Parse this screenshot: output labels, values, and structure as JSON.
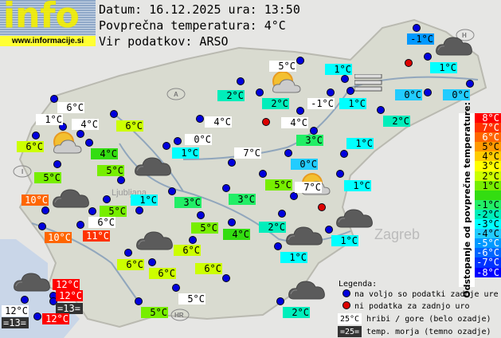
{
  "logo": {
    "word": "info",
    "url": "www.informacije.si"
  },
  "header": {
    "date_line": "Datum: 16.12.2025 ura: 13:50",
    "avg_line": "Povprečna temperatura: 4°C",
    "source_line": "Vir podatkov: ARSO"
  },
  "average_temperature": 4,
  "stations": [
    {
      "temp": "6°C",
      "style": "mountain"
    },
    {
      "temp": "1°C",
      "style": "mountain"
    },
    {
      "temp": "4°C",
      "style": "mountain"
    },
    {
      "temp": "6°C",
      "dev": 2
    },
    {
      "temp": "6°C",
      "dev": 2
    },
    {
      "temp": "4°C",
      "dev": 0
    },
    {
      "temp": "5°C",
      "dev": 1
    },
    {
      "temp": "5°C",
      "dev": 1
    },
    {
      "temp": "10°C",
      "dev": 6
    },
    {
      "temp": "1°C",
      "dev": -3
    },
    {
      "temp": "5°C",
      "dev": 1
    },
    {
      "temp": "6°C",
      "style": "mountain"
    },
    {
      "temp": "10°C",
      "dev": 6
    },
    {
      "temp": "11°C",
      "dev": 7
    },
    {
      "temp": "5°C",
      "style": "mountain"
    },
    {
      "temp": "2°C",
      "dev": -2
    },
    {
      "temp": "2°C",
      "dev": -2
    },
    {
      "temp": "-1°C",
      "style": "mountain"
    },
    {
      "temp": "4°C",
      "style": "mountain"
    },
    {
      "temp": "4°C",
      "style": "mountain"
    },
    {
      "temp": "0°C",
      "style": "mountain"
    },
    {
      "temp": "3°C",
      "dev": -1
    },
    {
      "temp": "1°C",
      "dev": -3
    },
    {
      "temp": "7°C",
      "style": "mountain"
    },
    {
      "temp": "0°C",
      "dev": -4
    },
    {
      "temp": "5°C",
      "dev": 1
    },
    {
      "temp": "7°C",
      "style": "mountain"
    },
    {
      "temp": "3°C",
      "dev": -1
    },
    {
      "temp": "3°C",
      "dev": -1
    },
    {
      "temp": "-1°C",
      "dev": -5
    },
    {
      "temp": "1°C",
      "dev": -3
    },
    {
      "temp": "1°C",
      "dev": -3
    },
    {
      "temp": "0°C",
      "dev": -4
    },
    {
      "temp": "0°C",
      "dev": -4
    },
    {
      "temp": "1°C",
      "dev": -3
    },
    {
      "temp": "2°C",
      "dev": -2
    },
    {
      "temp": "1°C",
      "dev": -3
    },
    {
      "temp": "1°C",
      "dev": -3
    },
    {
      "temp": "2°C",
      "dev": -2
    },
    {
      "temp": "4°C",
      "dev": 0
    },
    {
      "temp": "1°C",
      "dev": -3
    },
    {
      "temp": "1°C",
      "dev": -3
    },
    {
      "temp": "2°C",
      "dev": -2
    },
    {
      "temp": "5°C",
      "dev": 1
    },
    {
      "temp": "6°C",
      "dev": 2
    },
    {
      "temp": "6°C",
      "dev": 2
    },
    {
      "temp": "6°C",
      "dev": 2
    },
    {
      "temp": "6°C",
      "dev": 2
    },
    {
      "temp": "12°C",
      "dev": 8
    },
    {
      "temp": "12°C",
      "dev": 8
    },
    {
      "temp": "=13=",
      "style": "sea"
    },
    {
      "temp": "12°C",
      "style": "mountain"
    },
    {
      "temp": "=13=",
      "style": "sea"
    },
    {
      "temp": "12°C",
      "dev": 8
    },
    {
      "temp": "5°C",
      "style": "mountain"
    },
    {
      "temp": "5°C",
      "dev": 1
    }
  ],
  "station_dots": {
    "available_count": 66,
    "missing_count": 3
  },
  "weather_icons": [
    "cloud",
    "cloud",
    "cloud",
    "cloud",
    "cloud",
    "cloud",
    "cloud",
    "cloud",
    "sun-cloud",
    "sun-cloud",
    "sun-cloud",
    "fog"
  ],
  "scale": {
    "title": "Odstopanje od povprečne temperature:",
    "steps": [
      {
        "label": "8°C",
        "color": "#ff0000"
      },
      {
        "label": "7°C",
        "color": "#ff3300"
      },
      {
        "label": "6°C",
        "color": "#ff6600"
      },
      {
        "label": "5°C",
        "color": "#ff9900"
      },
      {
        "label": "4°C",
        "color": "#ffcc00"
      },
      {
        "label": "3°C",
        "color": "#ffff00"
      },
      {
        "label": "2°C",
        "color": "#ccff00"
      },
      {
        "label": "1°C",
        "color": "#77ee00"
      },
      {
        "label": "",
        "color": "#33dd11"
      },
      {
        "label": "-1°C",
        "color": "#22ee66"
      },
      {
        "label": "-2°C",
        "color": "#00eebb"
      },
      {
        "label": "-3°C",
        "color": "#00ffff"
      },
      {
        "label": "-4°C",
        "color": "#22ccff"
      },
      {
        "label": "-5°C",
        "color": "#0099ff"
      },
      {
        "label": "-6°C",
        "color": "#0066ff"
      },
      {
        "label": "-7°C",
        "color": "#0033ff"
      },
      {
        "label": "-8°C",
        "color": "#0000ff"
      }
    ]
  },
  "colors": {
    "dot_available": "#0000dd",
    "dot_missing": "#dd0000",
    "mountain_bg": "#ffffff",
    "sea_bg": "#333333",
    "sea_text": "#ffffff"
  },
  "legend": {
    "title": "Legenda:",
    "available": "na voljo so podatki zadnje ure",
    "missing": "ni podatka za zadnjo uro",
    "mountain_sample": "25°C",
    "mountain_text": "hribi / gore (belo ozadje)",
    "sea_sample": "=25=",
    "sea_text": "temp. morja (temno ozadje)"
  },
  "map_labels": {
    "capital": "Ljubljana",
    "neighbor_city": "Zagreb",
    "croatia_badge": "HR",
    "austria_badge": "A",
    "hungary_badge": "H",
    "italy_badge": "I"
  }
}
